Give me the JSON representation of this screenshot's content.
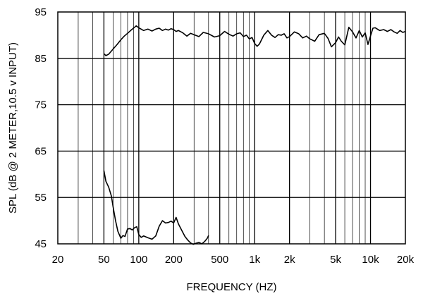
{
  "chart_data": {
    "type": "line",
    "xlabel": "FREQUENCY  (HZ)",
    "ylabel": "SPL (dB @ 2 METER,10.5 v  INPUT)",
    "x_scale": "log",
    "xlim": [
      20,
      20000
    ],
    "ylim": [
      45,
      95
    ],
    "x_ticks": [
      20,
      50,
      100,
      200,
      500,
      1000,
      2000,
      5000,
      10000,
      20000
    ],
    "x_tick_labels": [
      "20",
      "50",
      "100",
      "200",
      "500",
      "1k",
      "2k",
      "5k",
      "10k",
      "20k"
    ],
    "y_ticks": [
      45,
      55,
      65,
      75,
      85,
      95
    ],
    "y_tick_labels": [
      "45",
      "55",
      "65",
      "75",
      "85",
      "95"
    ],
    "grid": true,
    "series": [
      {
        "color": "#000000",
        "x": [
          50,
          52,
          55,
          60,
          65,
          70,
          75,
          80,
          85,
          90,
          95,
          100,
          110,
          120,
          130,
          140,
          150,
          160,
          170,
          180,
          190,
          200,
          210,
          220,
          240,
          260,
          280,
          300,
          330,
          360,
          400,
          450,
          500,
          550,
          600,
          650,
          700,
          750,
          800,
          850,
          900,
          950,
          1000,
          1050,
          1100,
          1200,
          1300,
          1400,
          1500,
          1600,
          1700,
          1800,
          1900,
          2000,
          2200,
          2400,
          2600,
          2800,
          3000,
          3300,
          3600,
          4000,
          4300,
          4600,
          5000,
          5300,
          5600,
          6000,
          6500,
          7000,
          7500,
          8000,
          8500,
          9000,
          9500,
          10000,
          10500,
          11000,
          12000,
          13000,
          14000,
          15000,
          16000,
          17000,
          18000,
          19000,
          20000
        ],
        "y": [
          86.0,
          85.6,
          85.9,
          87.0,
          88.0,
          89.0,
          89.8,
          90.4,
          91.0,
          91.5,
          92.0,
          91.6,
          91.0,
          91.3,
          90.9,
          91.3,
          91.5,
          91.0,
          91.3,
          91.1,
          91.4,
          91.2,
          90.8,
          91.0,
          90.5,
          89.8,
          90.4,
          90.1,
          89.7,
          90.6,
          90.3,
          89.6,
          89.9,
          90.8,
          90.2,
          89.8,
          90.3,
          90.5,
          89.7,
          90.0,
          89.2,
          89.5,
          88.2,
          87.6,
          88.1,
          90.0,
          91.0,
          90.0,
          89.5,
          90.1,
          90.0,
          90.3,
          89.4,
          89.7,
          90.7,
          90.3,
          89.4,
          89.8,
          89.2,
          88.7,
          90.1,
          90.4,
          89.3,
          87.5,
          88.4,
          89.6,
          88.7,
          87.9,
          91.7,
          90.7,
          89.4,
          91.0,
          89.6,
          90.5,
          88.0,
          89.8,
          91.5,
          91.6,
          91.0,
          91.2,
          90.8,
          91.2,
          90.7,
          90.4,
          91.0,
          90.6,
          90.8
        ]
      },
      {
        "color": "#000000",
        "x": [
          50,
          52,
          55,
          58,
          60,
          63,
          66,
          70,
          73,
          76,
          80,
          84,
          88,
          92,
          96,
          100,
          105,
          110,
          120,
          130,
          140,
          150,
          160,
          170,
          180,
          190,
          200,
          210,
          220,
          235,
          250,
          265,
          280,
          295,
          310,
          330,
          350,
          370,
          390,
          400
        ],
        "y": [
          60.8,
          58.5,
          57.2,
          55.3,
          53.0,
          50.0,
          47.7,
          46.2,
          46.8,
          46.6,
          48.2,
          48.3,
          48.0,
          48.5,
          48.7,
          47.0,
          46.4,
          46.7,
          46.3,
          46.0,
          46.7,
          48.8,
          50.0,
          49.5,
          49.6,
          49.9,
          49.5,
          50.7,
          49.3,
          47.9,
          46.6,
          45.8,
          45.2,
          44.9,
          45.1,
          45.3,
          45.0,
          45.5,
          46.2,
          46.8
        ]
      }
    ]
  }
}
